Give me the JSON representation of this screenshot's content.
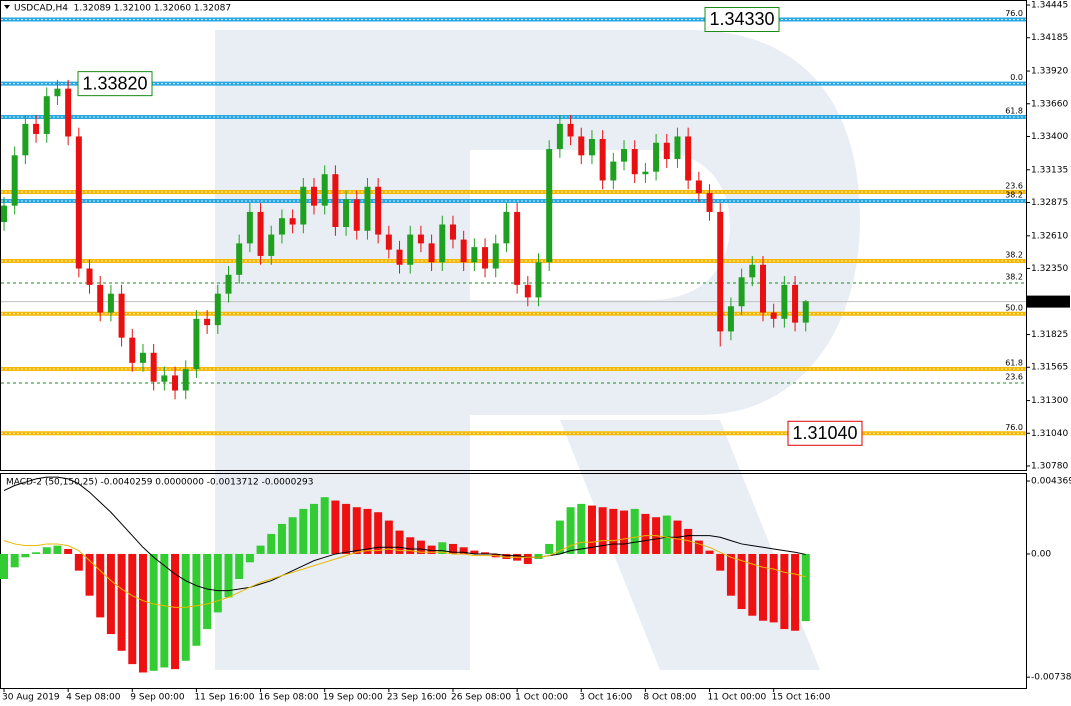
{
  "chart_data": [
    {
      "type": "candlestick",
      "title": "USDCAD,H4  1.32089 1.32100 1.32060 1.32087",
      "categories": [
        "30 Aug 2019",
        null,
        null,
        null,
        null,
        null,
        "4 Sep 08:00",
        null,
        null,
        null,
        null,
        null,
        "9 Sep 00:00",
        null,
        null,
        null,
        null,
        null,
        "11 Sep 16:00",
        null,
        null,
        null,
        null,
        null,
        "16 Sep 08:00",
        null,
        null,
        null,
        null,
        null,
        "19 Sep 00:00",
        null,
        null,
        null,
        null,
        null,
        "23 Sep 16:00",
        null,
        null,
        null,
        null,
        null,
        "26 Sep 08:00",
        null,
        null,
        null,
        null,
        null,
        "1 Oct 00:00",
        null,
        null,
        null,
        null,
        null,
        "3 Oct 16:00",
        null,
        null,
        null,
        null,
        null,
        "8 Oct 08:00",
        null,
        null,
        null,
        null,
        null,
        "11 Oct 00:00",
        null,
        null,
        null,
        null,
        null,
        "15 Oct 16:00",
        null,
        null,
        null
      ],
      "open": [
        1.3272,
        1.3285,
        1.3325,
        1.335,
        1.3342,
        1.3372,
        1.3378,
        1.334,
        1.3235,
        1.3222,
        1.32,
        1.3215,
        1.318,
        1.316,
        1.3168,
        1.3145,
        1.315,
        1.3138,
        1.3155,
        1.3195,
        1.319,
        1.3215,
        1.323,
        1.3255,
        1.328,
        1.3245,
        1.3262,
        1.3275,
        1.327,
        1.33,
        1.3285,
        1.331,
        1.3268,
        1.329,
        1.3265,
        1.33,
        1.3262,
        1.325,
        1.3238,
        1.3262,
        1.3255,
        1.324,
        1.327,
        1.3258,
        1.324,
        1.3252,
        1.3235,
        1.3255,
        1.328,
        1.3222,
        1.3212,
        1.324,
        1.333,
        1.335,
        1.334,
        1.3325,
        1.3338,
        1.3305,
        1.332,
        1.333,
        1.331,
        1.3312,
        1.3335,
        1.3322,
        1.334,
        1.3305,
        1.3295,
        1.328,
        1.3185,
        1.3205,
        1.3228,
        1.3238,
        1.32,
        1.3195,
        1.3222,
        1.3192
      ],
      "high": [
        1.3292,
        1.3332,
        1.3357,
        1.3357,
        1.3379,
        1.3385,
        1.3385,
        1.3347,
        1.3242,
        1.3229,
        1.3222,
        1.3222,
        1.3187,
        1.3175,
        1.3175,
        1.3157,
        1.3157,
        1.3162,
        1.3202,
        1.3202,
        1.3222,
        1.3237,
        1.3262,
        1.3287,
        1.3287,
        1.3269,
        1.3282,
        1.3282,
        1.3307,
        1.3307,
        1.3317,
        1.3317,
        1.3297,
        1.3297,
        1.3307,
        1.3307,
        1.3269,
        1.3257,
        1.3269,
        1.3269,
        1.3262,
        1.3277,
        1.3277,
        1.3265,
        1.3259,
        1.3259,
        1.3262,
        1.3287,
        1.3287,
        1.3229,
        1.3247,
        1.3337,
        1.3357,
        1.3357,
        1.3347,
        1.3345,
        1.3345,
        1.3327,
        1.3337,
        1.3337,
        1.3319,
        1.3342,
        1.3342,
        1.3347,
        1.3347,
        1.3312,
        1.3302,
        1.3287,
        1.3212,
        1.3235,
        1.3245,
        1.3245,
        1.3207,
        1.3229,
        1.3229,
        1.321
      ],
      "low": [
        1.3265,
        1.3278,
        1.3318,
        1.3335,
        1.3335,
        1.3365,
        1.3333,
        1.3228,
        1.3215,
        1.3193,
        1.3193,
        1.3173,
        1.3153,
        1.3153,
        1.3138,
        1.3138,
        1.3131,
        1.3131,
        1.3148,
        1.3183,
        1.3183,
        1.3208,
        1.3223,
        1.3248,
        1.3238,
        1.3238,
        1.3255,
        1.3263,
        1.3263,
        1.3278,
        1.3278,
        1.3261,
        1.3261,
        1.3258,
        1.3258,
        1.3255,
        1.3243,
        1.3231,
        1.3231,
        1.3248,
        1.3233,
        1.3233,
        1.3251,
        1.3233,
        1.3233,
        1.3228,
        1.3228,
        1.3248,
        1.3215,
        1.3205,
        1.3205,
        1.3233,
        1.3323,
        1.3333,
        1.3318,
        1.3318,
        1.3298,
        1.3298,
        1.3313,
        1.3303,
        1.3303,
        1.3305,
        1.3315,
        1.3315,
        1.3298,
        1.3288,
        1.3273,
        1.3173,
        1.3178,
        1.3198,
        1.3221,
        1.3193,
        1.3188,
        1.3188,
        1.3185,
        1.3185
      ],
      "close": [
        1.3285,
        1.3325,
        1.335,
        1.3342,
        1.3372,
        1.3378,
        1.334,
        1.3235,
        1.3222,
        1.32,
        1.3215,
        1.318,
        1.316,
        1.3168,
        1.3145,
        1.315,
        1.3138,
        1.3155,
        1.3195,
        1.319,
        1.3215,
        1.323,
        1.3255,
        1.328,
        1.3245,
        1.3262,
        1.3275,
        1.327,
        1.33,
        1.3285,
        1.331,
        1.3268,
        1.329,
        1.3265,
        1.33,
        1.3262,
        1.325,
        1.3238,
        1.3262,
        1.3255,
        1.324,
        1.327,
        1.3258,
        1.324,
        1.3252,
        1.3235,
        1.3255,
        1.328,
        1.3222,
        1.3212,
        1.324,
        1.333,
        1.335,
        1.334,
        1.3325,
        1.3338,
        1.3305,
        1.332,
        1.333,
        1.331,
        1.3312,
        1.3335,
        1.3322,
        1.334,
        1.3305,
        1.3295,
        1.328,
        1.3185,
        1.3205,
        1.3228,
        1.3238,
        1.32,
        1.3195,
        1.3222,
        1.3192,
        1.3209
      ],
      "up_color": "#20a020",
      "down_color": "#e81010",
      "ylim": [
        1.30748,
        1.34485
      ],
      "yticks": [
        1.34445,
        1.34185,
        {
          "value": 1.3392,
          "label": "1.33920"
        },
        {
          "value": 1.3366,
          "label": "1.33660"
        },
        {
          "value": 1.334,
          "label": "1.33400"
        },
        1.33135,
        1.32875,
        {
          "value": 1.3261,
          "label": "1.32610"
        },
        {
          "value": 1.3235,
          "label": "1.32350"
        },
        1.31825,
        1.31565,
        {
          "value": 1.313,
          "label": "1.31300"
        },
        {
          "value": 1.3104,
          "label": "1.31040"
        },
        {
          "value": 1.3078,
          "label": "1.30780"
        }
      ],
      "last_price": 1.32087,
      "levels": [
        {
          "label": "76.0",
          "value": 1.3433,
          "color": "#29a8e0",
          "label_color": "#1a8c1a"
        },
        {
          "label": "0.0",
          "value": 1.3382,
          "color": "#29a8e0",
          "label_color": "#e00000"
        },
        {
          "label": "61.8",
          "value": 1.33555,
          "color": "#29a8e0",
          "label_color": "#1a8c1a"
        },
        {
          "label": "23.6",
          "value": 1.32958,
          "color": "#f5b800",
          "label_color": "#e00000"
        },
        {
          "label": "38.2",
          "value": 1.32887,
          "color": "#29a8e0",
          "label_color": "#1a8c1a"
        },
        {
          "label": "38.2",
          "value": 1.3241,
          "color": "#f5b800",
          "label_color": "#e00000"
        },
        {
          "label": "38.2",
          "value": 1.32235,
          "color": "#1a8c1a",
          "label_color": "#1a8c1a",
          "dashed": true
        },
        {
          "label": "50.0",
          "value": 1.3199,
          "color": "#f5b800",
          "label_color": "#e00000"
        },
        {
          "label": "61.8",
          "value": 1.31551,
          "color": "#f5b800",
          "label_color": "#e00000"
        },
        {
          "label": "23.6",
          "value": 1.3144,
          "color": "#1a8c1a",
          "label_color": "#1a8c1a",
          "dashed": true
        },
        {
          "label": "76.0",
          "value": 1.3104,
          "color": "#f5b800",
          "label_color": "#e00000"
        }
      ],
      "annotations": [
        {
          "value": 1.3433,
          "label": "1.34330",
          "color": "#1a8c1a"
        },
        {
          "value": 1.3382,
          "label": "1.33820",
          "color": "#1a8c1a"
        },
        {
          "value": 1.3104,
          "label": "1.31040",
          "color": "#e00000"
        }
      ]
    },
    {
      "type": "macd",
      "title": "MACD-2 (50,150,25) -0.0040259 0.0000000 -0.0013712 -0.0000293",
      "ylim": [
        -0.00803,
        0.00479
      ],
      "yticks": [
        0.0043693,
        {
          "value": 0,
          "label": "0.00"
        },
        -0.007381
      ],
      "up_color": "#33cc33",
      "down_color": "#ee1111",
      "histogram": [
        -0.0015,
        -0.0008,
        -0.0002,
        0.0001,
        0.0004,
        0.0005,
        0.0003,
        -0.001,
        -0.0025,
        -0.0038,
        -0.0048,
        -0.0058,
        -0.0066,
        -0.0071,
        -0.007,
        -0.0068,
        -0.0069,
        -0.0064,
        -0.0055,
        -0.0045,
        -0.0035,
        -0.0026,
        -0.0015,
        -0.0005,
        0.0005,
        0.0012,
        0.0018,
        0.0022,
        0.0027,
        0.003,
        0.0034,
        0.0032,
        0.003,
        0.0028,
        0.0027,
        0.0025,
        0.002,
        0.0014,
        0.001,
        0.0008,
        0.0005,
        0.0007,
        0.0006,
        0.0004,
        0.0002,
        0.0001,
        -0.0002,
        -0.0003,
        -0.0004,
        -0.0006,
        -0.0003,
        0.0006,
        0.002,
        0.0028,
        0.003,
        0.0029,
        0.0028,
        0.0027,
        0.0026,
        0.0027,
        0.0024,
        0.0022,
        0.0023,
        0.002,
        0.0015,
        0.0008,
        0.0002,
        -0.001,
        -0.0025,
        -0.0033,
        -0.0037,
        -0.004,
        -0.0041,
        -0.0045,
        -0.0046,
        -0.0040259
      ],
      "lines": [
        {
          "color": "#000000",
          "values": [
            0.0038,
            0.0041,
            0.0043,
            0.0045,
            0.0046,
            0.0046,
            0.0045,
            0.0042,
            0.0037,
            0.0031,
            0.0025,
            0.0018,
            0.0011,
            0.0004,
            -0.0002,
            -0.0007,
            -0.0012,
            -0.0016,
            -0.0019,
            -0.0021,
            -0.0022,
            -0.0022,
            -0.0021,
            -0.002,
            -0.0018,
            -0.0016,
            -0.0013,
            -0.001,
            -0.0007,
            -0.0004,
            -0.0002,
            0.0,
            0.0001,
            0.0002,
            0.0003,
            0.0004,
            0.0004,
            0.0004,
            0.0003,
            0.0003,
            0.0002,
            0.0002,
            0.0001,
            0.0001,
            0.0,
            0.0,
            0.0,
            -0.0001,
            -0.0001,
            -0.0002,
            -0.0002,
            -0.0001,
            0.0,
            0.0002,
            0.0003,
            0.0004,
            0.0005,
            0.0006,
            0.0006,
            0.0007,
            0.0008,
            0.0009,
            0.001,
            0.001,
            0.0011,
            0.0011,
            0.0011,
            0.001,
            0.0008,
            0.0006,
            0.0005,
            0.0004,
            0.0003,
            0.0002,
            0.0001,
            -2.93e-05
          ]
        },
        {
          "color": "#e8b800",
          "values": [
            0.0008,
            0.0006,
            0.0005,
            0.0005,
            0.0006,
            0.0006,
            0.0005,
            0.0002,
            -0.0004,
            -0.001,
            -0.0016,
            -0.0021,
            -0.0025,
            -0.0028,
            -0.003,
            -0.0031,
            -0.0032,
            -0.0032,
            -0.0031,
            -0.003,
            -0.0028,
            -0.0026,
            -0.0023,
            -0.002,
            -0.0017,
            -0.0015,
            -0.0013,
            -0.0011,
            -0.0009,
            -0.0007,
            -0.0005,
            -0.0003,
            -0.0001,
            0.0001,
            0.0002,
            0.0002,
            0.0003,
            0.0002,
            0.0002,
            0.0001,
            0.0001,
            0.0001,
            0.0,
            0.0,
            -0.0001,
            -0.0001,
            -0.0001,
            -0.0002,
            -0.0002,
            -0.0002,
            -0.0002,
            -0.0001,
            0.0002,
            0.0005,
            0.0007,
            0.0007,
            0.0008,
            0.0008,
            0.0009,
            0.001,
            0.0011,
            0.0011,
            0.001,
            0.0009,
            0.0008,
            0.0006,
            0.0004,
            0.0001,
            -0.0002,
            -0.0004,
            -0.0006,
            -0.0008,
            -0.0009,
            -0.0011,
            -0.0012,
            -0.0013712
          ]
        }
      ]
    }
  ]
}
